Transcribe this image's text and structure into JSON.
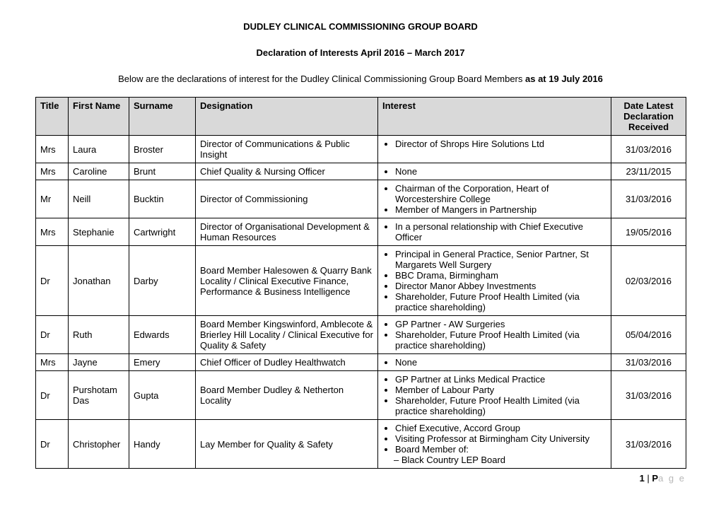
{
  "heading": "DUDLEY CLINICAL COMMISSIONING GROUP BOARD",
  "subheading": "Declaration of Interests April 2016 – March 2017",
  "intro_prefix": "Below are the declarations of interest for the Dudley Clinical Commissioning Group Board Members ",
  "intro_bold": "as at 19 July 2016",
  "columns": {
    "title": "Title",
    "first": "First Name",
    "surname": "Surname",
    "designation": "Designation",
    "interest": "Interest",
    "date": "Date Latest Declaration Received"
  },
  "rows": [
    {
      "title": "Mrs",
      "first": "Laura",
      "surname": "Broster",
      "designation": "Director of Communications & Public Insight",
      "interests": [
        "Director of Shrops Hire Solutions Ltd"
      ],
      "date": "31/03/2016"
    },
    {
      "title": "Mrs",
      "first": "Caroline",
      "surname": "Brunt",
      "designation": "Chief Quality & Nursing Officer",
      "interests": [
        "None"
      ],
      "date": "23/11/2015"
    },
    {
      "title": "Mr",
      "first": "Neill",
      "surname": "Bucktin",
      "designation": "Director of Commissioning",
      "interests": [
        "Chairman of the Corporation, Heart of Worcestershire College",
        "Member of Mangers in Partnership"
      ],
      "date": "31/03/2016"
    },
    {
      "title": "Mrs",
      "first": "Stephanie",
      "surname": "Cartwright",
      "designation": "Director of Organisational Development & Human Resources",
      "interests": [
        "In a personal relationship with Chief Executive Officer"
      ],
      "date": "19/05/2016"
    },
    {
      "title": "Dr",
      "first": "Jonathan",
      "surname": "Darby",
      "designation": "Board Member Halesowen & Quarry Bank Locality / Clinical Executive Finance, Performance & Business Intelligence",
      "interests": [
        "Principal in General Practice, Senior Partner, St Margarets Well Surgery",
        "BBC Drama, Birmingham",
        "Director Manor Abbey Investments",
        "Shareholder, Future Proof Health Limited (via practice shareholding)"
      ],
      "date": "02/03/2016"
    },
    {
      "title": "Dr",
      "first": "Ruth",
      "surname": "Edwards",
      "designation": "Board Member Kingswinford, Amblecote & Brierley Hill Locality / Clinical Executive for Quality & Safety",
      "interests": [
        "GP Partner - AW Surgeries",
        "Shareholder, Future Proof Health Limited (via practice shareholding)"
      ],
      "date": "05/04/2016"
    },
    {
      "title": "Mrs",
      "first": "Jayne",
      "surname": "Emery",
      "designation": "Chief Officer of Dudley Healthwatch",
      "interests": [
        "None"
      ],
      "date": "31/03/2016"
    },
    {
      "title": "Dr",
      "first": "Purshotam Das",
      "surname": "Gupta",
      "designation": "Board Member Dudley & Netherton Locality",
      "interests": [
        "GP Partner at Links Medical Practice",
        "Member of Labour Party",
        "Shareholder, Future Proof Health Limited (via practice shareholding)"
      ],
      "date": "31/03/2016"
    },
    {
      "title": "Dr",
      "first": "Christopher",
      "surname": "Handy",
      "designation": "Lay Member for Quality & Safety",
      "interests": [
        "Chief Executive, Accord Group",
        "Visiting Professor at Birmingham City University",
        "Board Member of:"
      ],
      "sub_interests": [
        "Black Country LEP Board"
      ],
      "date": "31/03/2016"
    }
  ],
  "footer": {
    "num": "1",
    "sep": " | ",
    "p": "P",
    "age": "a g e"
  }
}
